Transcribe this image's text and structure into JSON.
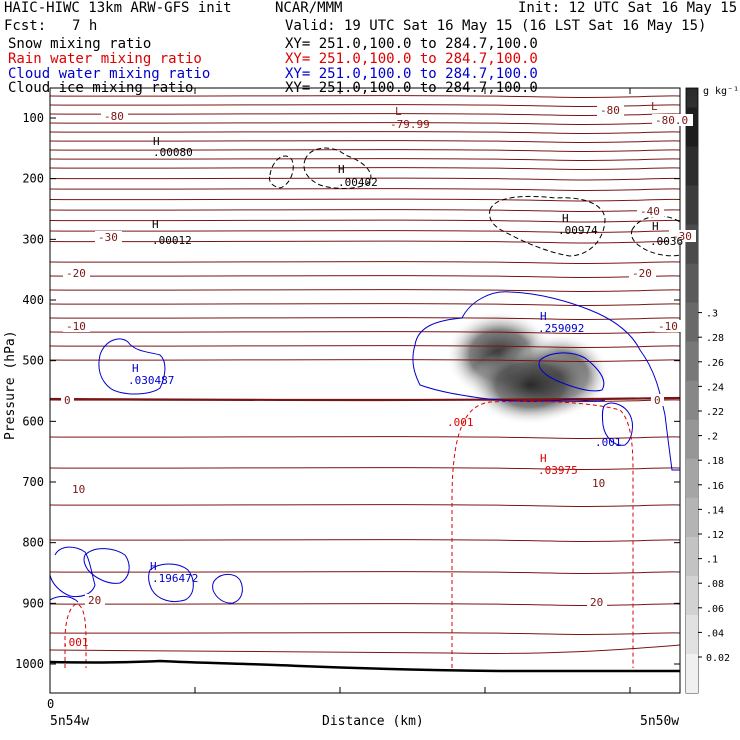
{
  "header": {
    "title": "HAIC-HIWC 13km ARW-GFS init",
    "org": "NCAR/MMM",
    "init": "Init: 12 UTC Sat 16 May 15",
    "fcst_label": "Fcst:",
    "fcst_value": "7 h",
    "valid": "Valid: 19 UTC Sat 16 May 15 (16 LST Sat 16 May 15)"
  },
  "fields": [
    {
      "name": "Snow mixing ratio",
      "xy": "XY= 251.0,100.0 to 284.7,100.0",
      "color": "#000000"
    },
    {
      "name": "Rain water mixing ratio",
      "xy": "XY= 251.0,100.0 to 284.7,100.0",
      "color": "#dd0000"
    },
    {
      "name": "Cloud water mixing ratio",
      "xy": "XY= 251.0,100.0 to 284.7,100.0",
      "color": "#0000cc"
    },
    {
      "name": "Cloud ice mixing ratio",
      "xy": "XY= 251.0,100.0 to 284.7,100.0",
      "color": "#000000"
    }
  ],
  "chart_data": {
    "type": "contour-cross-section",
    "xlabel": "Distance (km)",
    "ylabel": "Pressure (hPa)",
    "x_left_label": "5n54w",
    "x_right_label": "5n50w",
    "x_zero_label": "0",
    "yticks": [
      100,
      200,
      300,
      400,
      500,
      600,
      700,
      800,
      900,
      1000
    ],
    "ylim": [
      1060,
      60
    ],
    "colorbar": {
      "unit": "g kg⁻¹",
      "ticks": [
        "0.02",
        ".04",
        ".06",
        ".08",
        ".1",
        ".12",
        ".14",
        ".16",
        ".18",
        ".2",
        ".22",
        ".24",
        ".26",
        ".28",
        ".3"
      ]
    },
    "temperature_labels": [
      "-80",
      "-80",
      "-80.0",
      "-40",
      "-30",
      "-30",
      "-20",
      "-20",
      "-10",
      "-10",
      "0",
      "0",
      "10",
      "10",
      "20",
      "20"
    ],
    "extrema": [
      {
        "kind": "L",
        "value": "-79.99",
        "color": "#8b1a1a"
      },
      {
        "kind": "L",
        "value": "",
        "color": "#8b1a1a"
      },
      {
        "kind": "H",
        "value": ".00080",
        "color": "#000000"
      },
      {
        "kind": "H",
        "value": ".00402",
        "color": "#000000"
      },
      {
        "kind": "H",
        "value": ".00012",
        "color": "#000000"
      },
      {
        "kind": "H",
        "value": ".00974",
        "color": "#000000"
      },
      {
        "kind": "H",
        "value": ".0036",
        "color": "#000000"
      },
      {
        "kind": "H",
        "value": ".259092",
        "color": "#0000cc"
      },
      {
        "kind": "H",
        "value": ".030487",
        "color": "#0000cc"
      },
      {
        "kind": "H",
        "value": ".03975",
        "color": "#dd0000"
      },
      {
        "kind": "H",
        "value": ".196472",
        "color": "#0000cc"
      }
    ],
    "contour_labels": [
      {
        "text": ".001",
        "color": "#dd0000"
      },
      {
        "text": ".001",
        "color": "#0000cc"
      },
      {
        "text": ".001",
        "color": "#dd0000"
      }
    ]
  }
}
